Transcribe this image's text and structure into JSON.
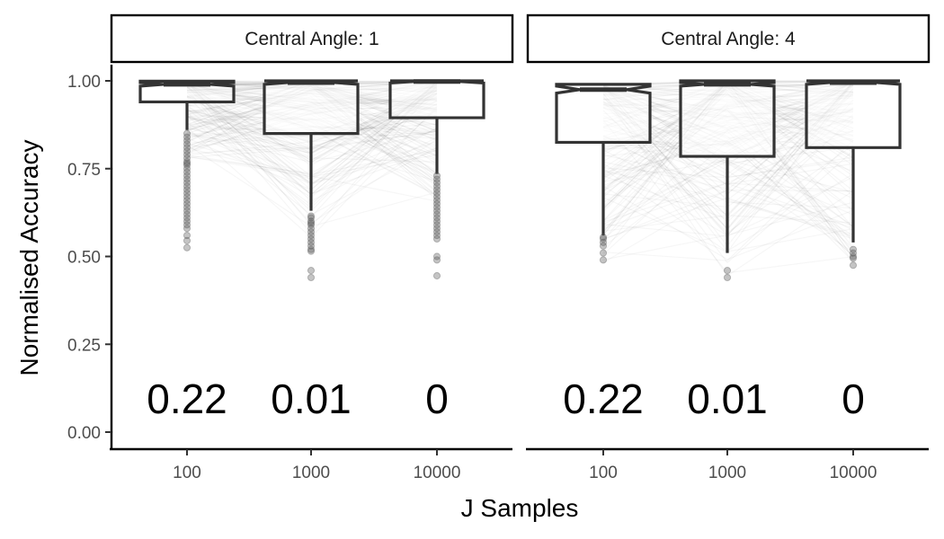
{
  "chart_data": {
    "type": "boxplot",
    "xlabel": "J Samples",
    "ylabel": "Normalised Accuracy",
    "categories": [
      "100",
      "1000",
      "10000"
    ],
    "ylim": [
      0,
      1.05
    ],
    "yticks": [
      0,
      0.25,
      0.5,
      0.75,
      1
    ],
    "ytick_labels": [
      "0.00",
      "0.25",
      "0.50",
      "0.75",
      "1.00"
    ],
    "grid": false,
    "box_color": "#333333",
    "point_color": "#555555",
    "line_color": "#000000",
    "panels": [
      {
        "strip": "Central Angle: 1",
        "boxes": [
          {
            "category": "100",
            "q1": 0.94,
            "median": 0.99,
            "q3": 0.999,
            "whisker_low": 0.86,
            "whisker_high": 1.0,
            "notch_low": 0.985,
            "notch_high": 0.995,
            "outliers": [
              0.85,
              0.84,
              0.83,
              0.82,
              0.81,
              0.8,
              0.79,
              0.78,
              0.77,
              0.765,
              0.76,
              0.75,
              0.74,
              0.73,
              0.72,
              0.71,
              0.7,
              0.69,
              0.68,
              0.67,
              0.66,
              0.65,
              0.64,
              0.63,
              0.62,
              0.61,
              0.6,
              0.59,
              0.58,
              0.56,
              0.545,
              0.525
            ]
          },
          {
            "category": "1000",
            "q1": 0.85,
            "median": 0.995,
            "q3": 1.0,
            "whisker_low": 0.63,
            "whisker_high": 1.0,
            "notch_low": 0.99,
            "notch_high": 1.0,
            "outliers": [
              0.615,
              0.61,
              0.6,
              0.595,
              0.59,
              0.58,
              0.57,
              0.56,
              0.55,
              0.54,
              0.53,
              0.52,
              0.515,
              0.46,
              0.44
            ]
          },
          {
            "category": "10000",
            "q1": 0.895,
            "median": 0.998,
            "q3": 1.0,
            "whisker_low": 0.735,
            "whisker_high": 1.0,
            "notch_low": 0.994,
            "notch_high": 1.0,
            "outliers": [
              0.73,
              0.72,
              0.71,
              0.7,
              0.69,
              0.68,
              0.67,
              0.66,
              0.65,
              0.64,
              0.63,
              0.62,
              0.61,
              0.6,
              0.59,
              0.58,
              0.57,
              0.56,
              0.55,
              0.5,
              0.49,
              0.445
            ]
          }
        ],
        "annotations": [
          "0.22",
          "0.01",
          "0"
        ]
      },
      {
        "strip": "Central Angle: 4",
        "boxes": [
          {
            "category": "100",
            "q1": 0.825,
            "median": 0.975,
            "q3": 0.99,
            "whisker_low": 0.56,
            "whisker_high": 1.0,
            "notch_low": 0.965,
            "notch_high": 0.985,
            "outliers": [
              0.555,
              0.55,
              0.54,
              0.53,
              0.51,
              0.49
            ]
          },
          {
            "category": "1000",
            "q1": 0.785,
            "median": 0.99,
            "q3": 1.0,
            "whisker_low": 0.51,
            "whisker_high": 1.0,
            "notch_low": 0.985,
            "notch_high": 0.995,
            "outliers": [
              0.46,
              0.44
            ]
          },
          {
            "category": "10000",
            "q1": 0.81,
            "median": 0.995,
            "q3": 1.0,
            "whisker_low": 0.54,
            "whisker_high": 1.0,
            "notch_low": 0.99,
            "notch_high": 1.0,
            "outliers": [
              0.52,
              0.51,
              0.5,
              0.495,
              0.475
            ]
          }
        ],
        "annotations": [
          "0.22",
          "0.01",
          "0"
        ]
      }
    ]
  }
}
